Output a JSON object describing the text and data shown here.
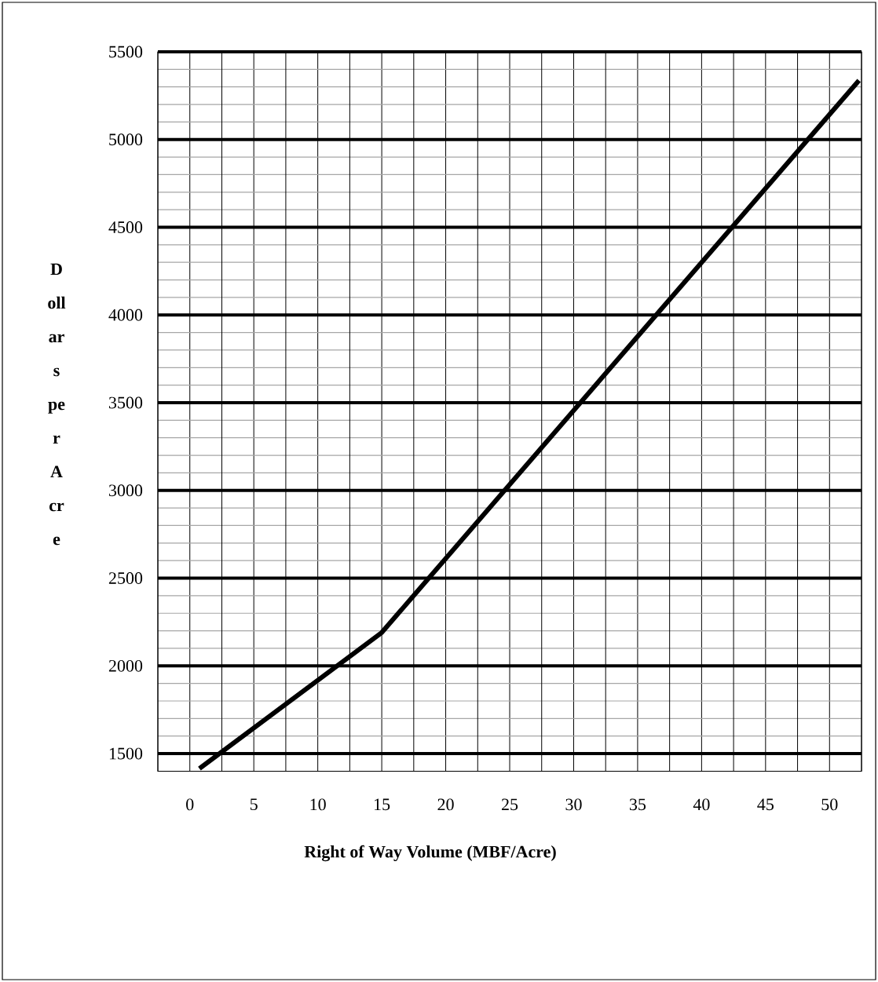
{
  "chart_data": {
    "type": "line",
    "xlabel": "Right of Way Volume (MBF/Acre)",
    "ylabel": "Dollars per Acre",
    "x": [
      0.75,
      15,
      52.3
    ],
    "series": [
      {
        "color": "#000000",
        "values": [
          1415,
          2190,
          5337
        ]
      }
    ],
    "xlim": [
      -2.5,
      52.5
    ],
    "xticks": [
      {
        "value": -2.5,
        "label": null
      },
      0,
      {
        "value": 2.5,
        "label": null
      },
      5,
      {
        "value": 7.5,
        "label": null
      },
      10,
      {
        "value": 12.5,
        "label": null
      },
      15,
      {
        "value": 17.5,
        "label": null
      },
      20,
      {
        "value": 22.5,
        "label": null
      },
      25,
      {
        "value": 27.5,
        "label": null
      },
      30,
      {
        "value": 32.5,
        "label": null
      },
      35,
      {
        "value": 37.5,
        "label": null
      },
      40,
      {
        "value": 42.5,
        "label": null
      },
      45,
      {
        "value": 47.5,
        "label": null
      },
      50,
      {
        "value": 52.5,
        "label": null
      }
    ],
    "ylim": [
      1400,
      5500
    ],
    "yticks": [
      1500,
      2000,
      2500,
      3000,
      3500,
      4000,
      4500,
      5000,
      5500
    ],
    "grid": true
  }
}
